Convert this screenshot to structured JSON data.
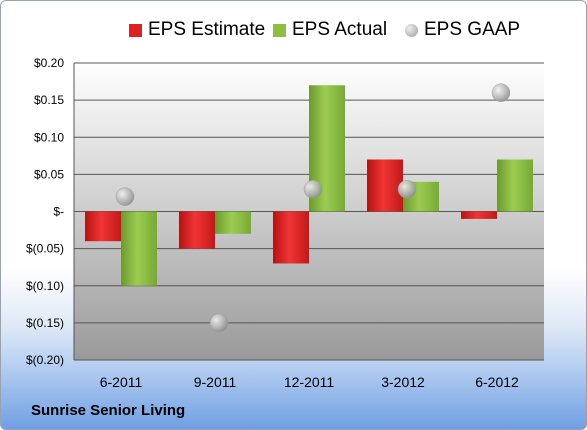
{
  "company": "Sunrise Senior Living",
  "legend": [
    {
      "name": "EPS Estimate",
      "color": "#e02020",
      "shape": "box"
    },
    {
      "name": "EPS Actual",
      "color": "#8cbf3f",
      "shape": "box"
    },
    {
      "name": "EPS GAAP",
      "color": "#b0b0b0",
      "shape": "circle"
    }
  ],
  "chart_data": {
    "type": "bar",
    "categories": [
      "6-2011",
      "9-2011",
      "12-2011",
      "3-2012",
      "6-2012"
    ],
    "series": [
      {
        "name": "EPS Estimate",
        "type": "bar",
        "color": "#e02020",
        "values": [
          -0.04,
          -0.05,
          -0.07,
          0.07,
          -0.01
        ]
      },
      {
        "name": "EPS Actual",
        "type": "bar",
        "color": "#8cbf3f",
        "values": [
          -0.1,
          -0.03,
          0.17,
          0.04,
          0.07
        ]
      },
      {
        "name": "EPS GAAP",
        "type": "scatter",
        "color": "#b0b0b0",
        "values": [
          0.02,
          -0.15,
          0.03,
          0.03,
          0.16
        ]
      }
    ],
    "ylim": [
      -0.2,
      0.2
    ],
    "yticks": [
      0.2,
      0.15,
      0.1,
      0.05,
      0,
      -0.05,
      -0.1,
      -0.15,
      -0.2
    ],
    "ytick_labels": [
      "$0.20",
      "$0.15",
      "$0.10",
      "$0.05",
      "$-",
      "$(0.05)",
      "$(0.10)",
      "$(0.15)",
      "$(0.20)"
    ],
    "grid": true,
    "legend_position": "top"
  }
}
